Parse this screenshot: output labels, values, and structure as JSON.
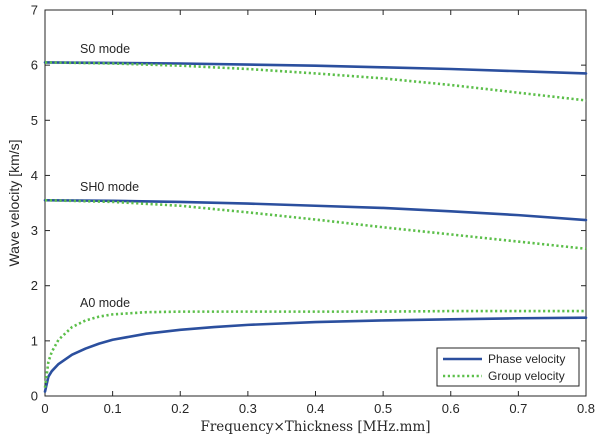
{
  "chart_data": {
    "type": "line",
    "xlabel": "Frequency×Thickness [MHz.mm]",
    "ylabel": "Wave velocity [km/s]",
    "xlim": [
      0,
      0.8
    ],
    "ylim": [
      0,
      7
    ],
    "x_ticks": [
      "0",
      "0.1",
      "0.2",
      "0.3",
      "0.4",
      "0.5",
      "0.6",
      "0.7",
      "0.8"
    ],
    "y_ticks": [
      "0",
      "1",
      "2",
      "3",
      "4",
      "5",
      "6",
      "7"
    ],
    "grid": false,
    "legend_position": "bottom-right",
    "legend": [
      {
        "label": "Phase velocity",
        "color": "#2b4f9e",
        "style": "solid"
      },
      {
        "label": "Group velocity",
        "color": "#5cbf4a",
        "style": "dotted"
      }
    ],
    "annotations": [
      "S0 mode",
      "SH0 mode",
      "A0 mode"
    ],
    "series": [
      {
        "mode": "S0",
        "kind": "phase",
        "style": "solid",
        "color": "#2b4f9e",
        "x": [
          0,
          0.1,
          0.2,
          0.3,
          0.4,
          0.5,
          0.6,
          0.7,
          0.8
        ],
        "y": [
          6.05,
          6.04,
          6.03,
          6.01,
          5.99,
          5.96,
          5.93,
          5.89,
          5.85
        ]
      },
      {
        "mode": "S0",
        "kind": "group",
        "style": "dotted",
        "color": "#5cbf4a",
        "x": [
          0,
          0.1,
          0.2,
          0.3,
          0.4,
          0.5,
          0.6,
          0.7,
          0.8
        ],
        "y": [
          6.05,
          6.03,
          5.99,
          5.93,
          5.85,
          5.76,
          5.64,
          5.5,
          5.36
        ]
      },
      {
        "mode": "SH0",
        "kind": "phase",
        "style": "solid",
        "color": "#2b4f9e",
        "x": [
          0,
          0.1,
          0.2,
          0.3,
          0.4,
          0.5,
          0.6,
          0.7,
          0.8
        ],
        "y": [
          3.55,
          3.54,
          3.52,
          3.49,
          3.45,
          3.41,
          3.35,
          3.28,
          3.19
        ]
      },
      {
        "mode": "SH0",
        "kind": "group",
        "style": "dotted",
        "color": "#5cbf4a",
        "x": [
          0,
          0.1,
          0.2,
          0.3,
          0.4,
          0.5,
          0.6,
          0.7,
          0.8
        ],
        "y": [
          3.55,
          3.52,
          3.45,
          3.33,
          3.2,
          3.06,
          2.93,
          2.8,
          2.67
        ]
      },
      {
        "mode": "A0",
        "kind": "phase",
        "style": "solid",
        "color": "#2b4f9e",
        "x": [
          0,
          0.005,
          0.01,
          0.02,
          0.04,
          0.06,
          0.08,
          0.1,
          0.15,
          0.2,
          0.25,
          0.3,
          0.4,
          0.5,
          0.6,
          0.7,
          0.8
        ],
        "y": [
          0.08,
          0.35,
          0.45,
          0.58,
          0.75,
          0.86,
          0.95,
          1.02,
          1.13,
          1.2,
          1.25,
          1.29,
          1.34,
          1.37,
          1.39,
          1.41,
          1.42
        ]
      },
      {
        "mode": "A0",
        "kind": "group",
        "style": "dotted",
        "color": "#5cbf4a",
        "x": [
          0,
          0.005,
          0.01,
          0.02,
          0.04,
          0.06,
          0.08,
          0.1,
          0.15,
          0.2,
          0.25,
          0.3,
          0.4,
          0.5,
          0.6,
          0.7,
          0.8
        ],
        "y": [
          0.15,
          0.62,
          0.8,
          1.02,
          1.25,
          1.37,
          1.44,
          1.48,
          1.52,
          1.53,
          1.53,
          1.53,
          1.53,
          1.53,
          1.54,
          1.54,
          1.54
        ]
      }
    ]
  }
}
